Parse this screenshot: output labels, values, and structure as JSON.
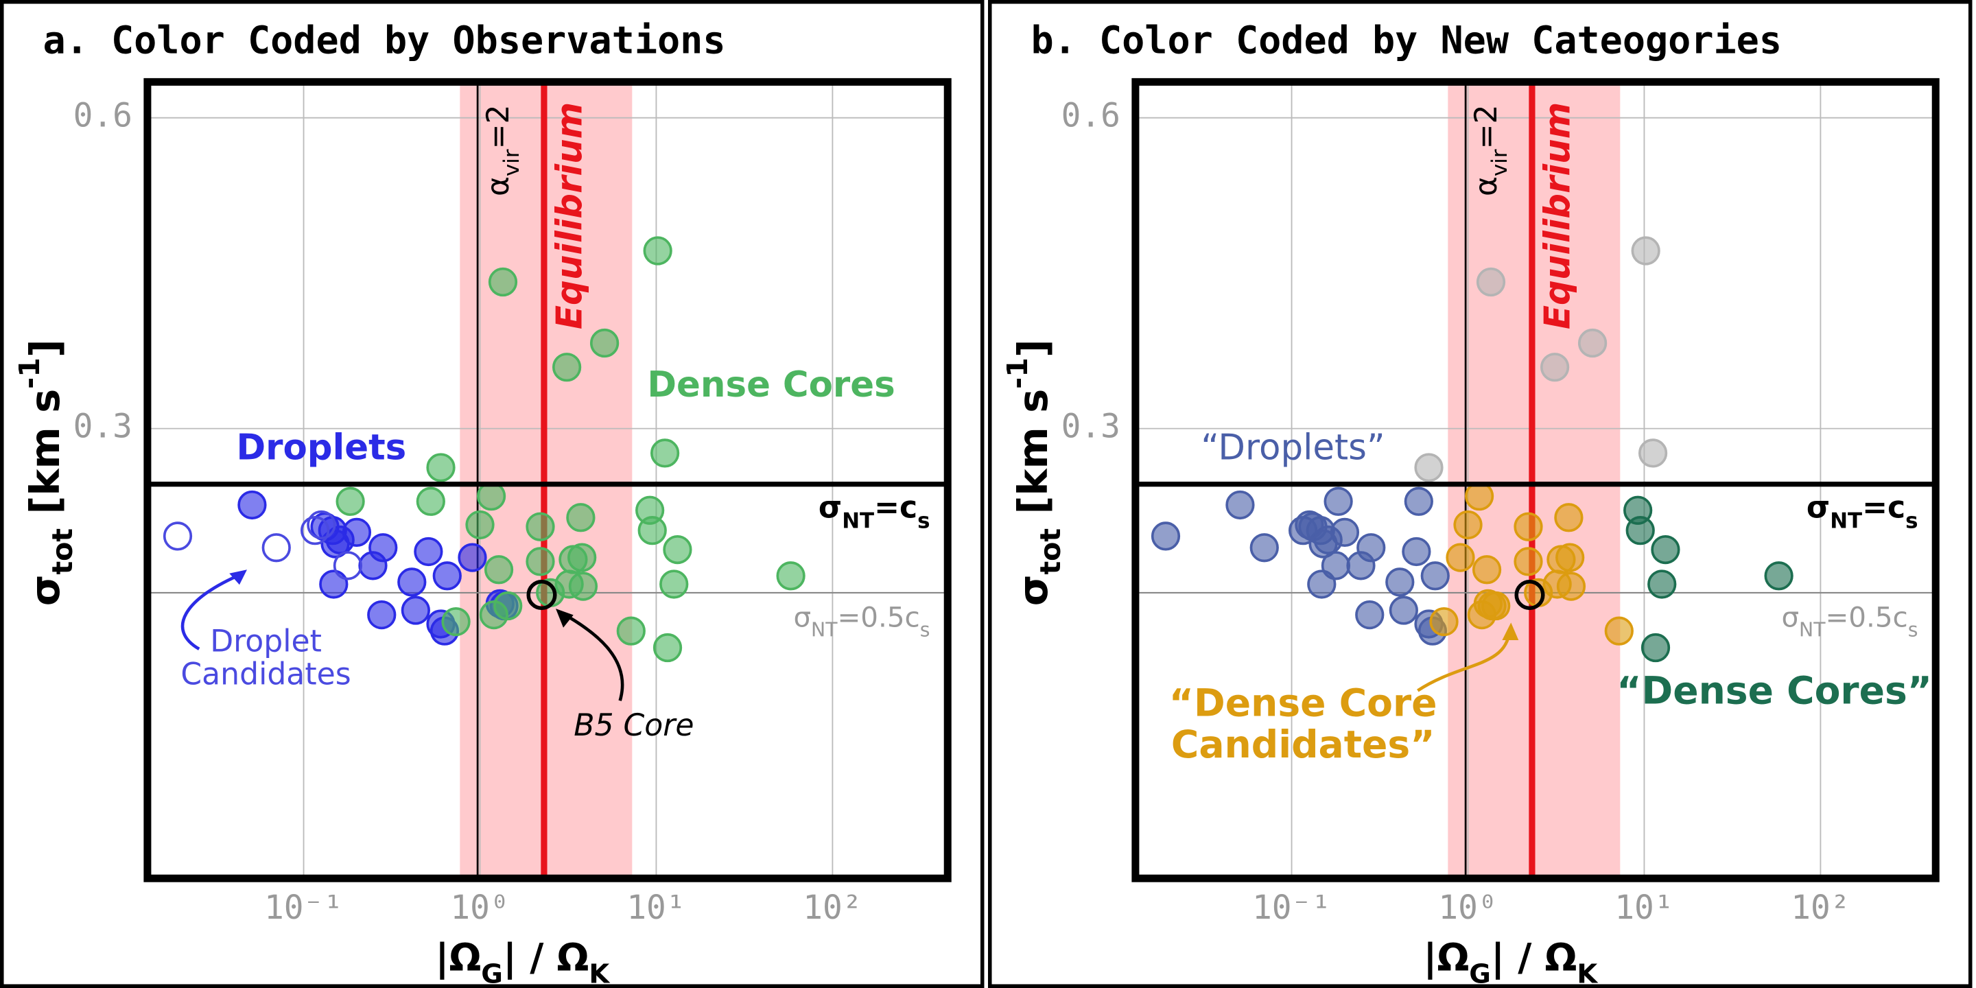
{
  "chart_data": [
    {
      "type": "scatter",
      "title": "a. Color Coded by Observations",
      "x_label": [
        "|Ω",
        "G",
        "| / Ω",
        "K"
      ],
      "y_label": [
        "σ",
        "tot",
        " [km s",
        "-1",
        "]"
      ],
      "xscale": "log",
      "yscale": "log",
      "grid": true,
      "xlim": [
        0.013,
        450
      ],
      "ylim": [
        0.11,
        0.65
      ],
      "xticks": [
        {
          "value": 0.1,
          "label": "10⁻¹"
        },
        {
          "value": 1,
          "label": "10⁰"
        },
        {
          "value": 10,
          "label": "10¹"
        },
        {
          "value": 100,
          "label": "10²"
        }
      ],
      "yticks": [
        0.3,
        0.6
      ],
      "equilibrium": {
        "label": "Equilibrium",
        "value": 2.31,
        "band": [
          0.77,
          7.3
        ],
        "color": "#e8141c"
      },
      "alpha_vir_line": {
        "label": [
          "α",
          "vir",
          "=2"
        ],
        "value": 0.97
      },
      "sigma_nt_cs": {
        "label": [
          "σ",
          "NT",
          "=c",
          "s"
        ],
        "value": 0.265
      },
      "sigma_nt_half": {
        "label": [
          "σ",
          "NT",
          "=0.5c",
          "s"
        ],
        "value": 0.208
      },
      "series": [
        {
          "name": "Droplets",
          "color": "#2b2be6",
          "marker": "filled",
          "x": [
            0.051,
            0.132,
            0.146,
            0.161,
            0.2,
            0.151,
            0.282,
            0.51,
            0.906,
            0.247,
            0.411,
            0.652,
            0.148,
            0.277,
            0.432,
            0.6,
            0.63,
            1.3,
            1.37
          ],
          "values": [
            0.253,
            0.241,
            0.239,
            0.234,
            0.238,
            0.232,
            0.23,
            0.228,
            0.225,
            0.221,
            0.213,
            0.216,
            0.212,
            0.198,
            0.2,
            0.194,
            0.191,
            0.203,
            0.202
          ]
        },
        {
          "name": "Droplet Candidates",
          "color": "#4a4ae0",
          "marker": "open",
          "x": [
            0.0193,
            0.07,
            0.116,
            0.126,
            0.178
          ],
          "values": [
            0.236,
            0.23,
            0.239,
            0.242,
            0.221
          ]
        },
        {
          "name": "Dense Cores",
          "color": "#4db560",
          "marker": "filled",
          "x": [
            10.2,
            1.35,
            3.11,
            5.09,
            11.2,
            0.6,
            1.16,
            0.184,
            0.526,
            1.0,
            2.2,
            3.73,
            9.2,
            9.5,
            13.2,
            1.28,
            2.2,
            3.38,
            3.79,
            3.21,
            3.85,
            12.6,
            58,
            0.731,
            1.2,
            1.44,
            2.51,
            7.2,
            11.6
          ],
          "values": [
            0.446,
            0.416,
            0.344,
            0.363,
            0.284,
            0.275,
            0.258,
            0.255,
            0.255,
            0.242,
            0.241,
            0.246,
            0.25,
            0.239,
            0.229,
            0.219,
            0.223,
            0.224,
            0.225,
            0.212,
            0.211,
            0.212,
            0.216,
            0.195,
            0.198,
            0.202,
            0.208,
            0.191,
            0.184
          ]
        },
        {
          "name": "B5 Core",
          "color": "#000000",
          "marker": "open",
          "x": [
            2.24
          ],
          "values": [
            0.207
          ]
        }
      ]
    },
    {
      "type": "scatter",
      "title": "b. Color Coded by New Cateogories",
      "x_label": [
        "|Ω",
        "G",
        "| / Ω",
        "K"
      ],
      "y_label": [
        "σ",
        "tot",
        " [km s",
        "-1",
        "]"
      ],
      "xscale": "log",
      "yscale": "log",
      "grid": true,
      "xlim": [
        0.013,
        450
      ],
      "ylim": [
        0.11,
        0.65
      ],
      "xticks": [
        {
          "value": 0.1,
          "label": "10⁻¹"
        },
        {
          "value": 1,
          "label": "10⁰"
        },
        {
          "value": 10,
          "label": "10¹"
        },
        {
          "value": 100,
          "label": "10²"
        }
      ],
      "yticks": [
        0.3,
        0.6
      ],
      "equilibrium": {
        "label": "Equilibrium",
        "value": 2.31,
        "band": [
          0.77,
          7.3
        ],
        "color": "#e8141c"
      },
      "alpha_vir_line": {
        "label": [
          "α",
          "vir",
          "=2"
        ],
        "value": 0.97
      },
      "sigma_nt_cs": {
        "label": [
          "σ",
          "NT",
          "=c",
          "s"
        ],
        "value": 0.265
      },
      "sigma_nt_half": {
        "label": [
          "σ",
          "NT",
          "=0.5c",
          "s"
        ],
        "value": 0.208
      },
      "series": [
        {
          "color": "#b4b4b4",
          "marker": "filled",
          "x": [
            10.2,
            1.35,
            3.11,
            5.09,
            11.2,
            0.6
          ],
          "values": [
            0.446,
            0.416,
            0.344,
            0.363,
            0.284,
            0.275
          ]
        },
        {
          "name": "“Droplets”",
          "color": "#4a5fa8",
          "marker": "filled",
          "x": [
            0.051,
            0.132,
            0.146,
            0.161,
            0.2,
            0.151,
            0.282,
            0.51,
            0.247,
            0.411,
            0.652,
            0.148,
            0.277,
            0.432,
            0.6,
            0.63,
            0.0193,
            0.07,
            0.116,
            0.126,
            0.178,
            0.184,
            0.526
          ],
          "values": [
            0.253,
            0.241,
            0.239,
            0.234,
            0.238,
            0.232,
            0.23,
            0.228,
            0.221,
            0.213,
            0.216,
            0.212,
            0.198,
            0.2,
            0.194,
            0.191,
            0.236,
            0.23,
            0.239,
            0.242,
            0.221,
            0.255,
            0.255
          ]
        },
        {
          "name": "“Dense Core Candidates”",
          "color": "#dc9c10",
          "marker": "filled",
          "x": [
            0.906,
            1.3,
            1.37,
            1.16,
            1.0,
            2.2,
            3.73,
            1.28,
            2.2,
            3.38,
            3.79,
            3.21,
            3.85,
            0.731,
            1.2,
            1.44,
            2.51,
            7.2
          ],
          "values": [
            0.225,
            0.203,
            0.202,
            0.258,
            0.242,
            0.241,
            0.246,
            0.219,
            0.223,
            0.224,
            0.225,
            0.212,
            0.211,
            0.195,
            0.198,
            0.202,
            0.208,
            0.191
          ]
        },
        {
          "name": "“Dense Cores”",
          "color": "#1c6e50",
          "marker": "filled",
          "x": [
            9.2,
            9.5,
            13.2,
            12.6,
            58,
            11.6
          ],
          "values": [
            0.25,
            0.239,
            0.229,
            0.212,
            0.216,
            0.184
          ]
        },
        {
          "color": "#000000",
          "marker": "open",
          "x": [
            2.24
          ],
          "values": [
            0.207
          ]
        }
      ]
    }
  ]
}
